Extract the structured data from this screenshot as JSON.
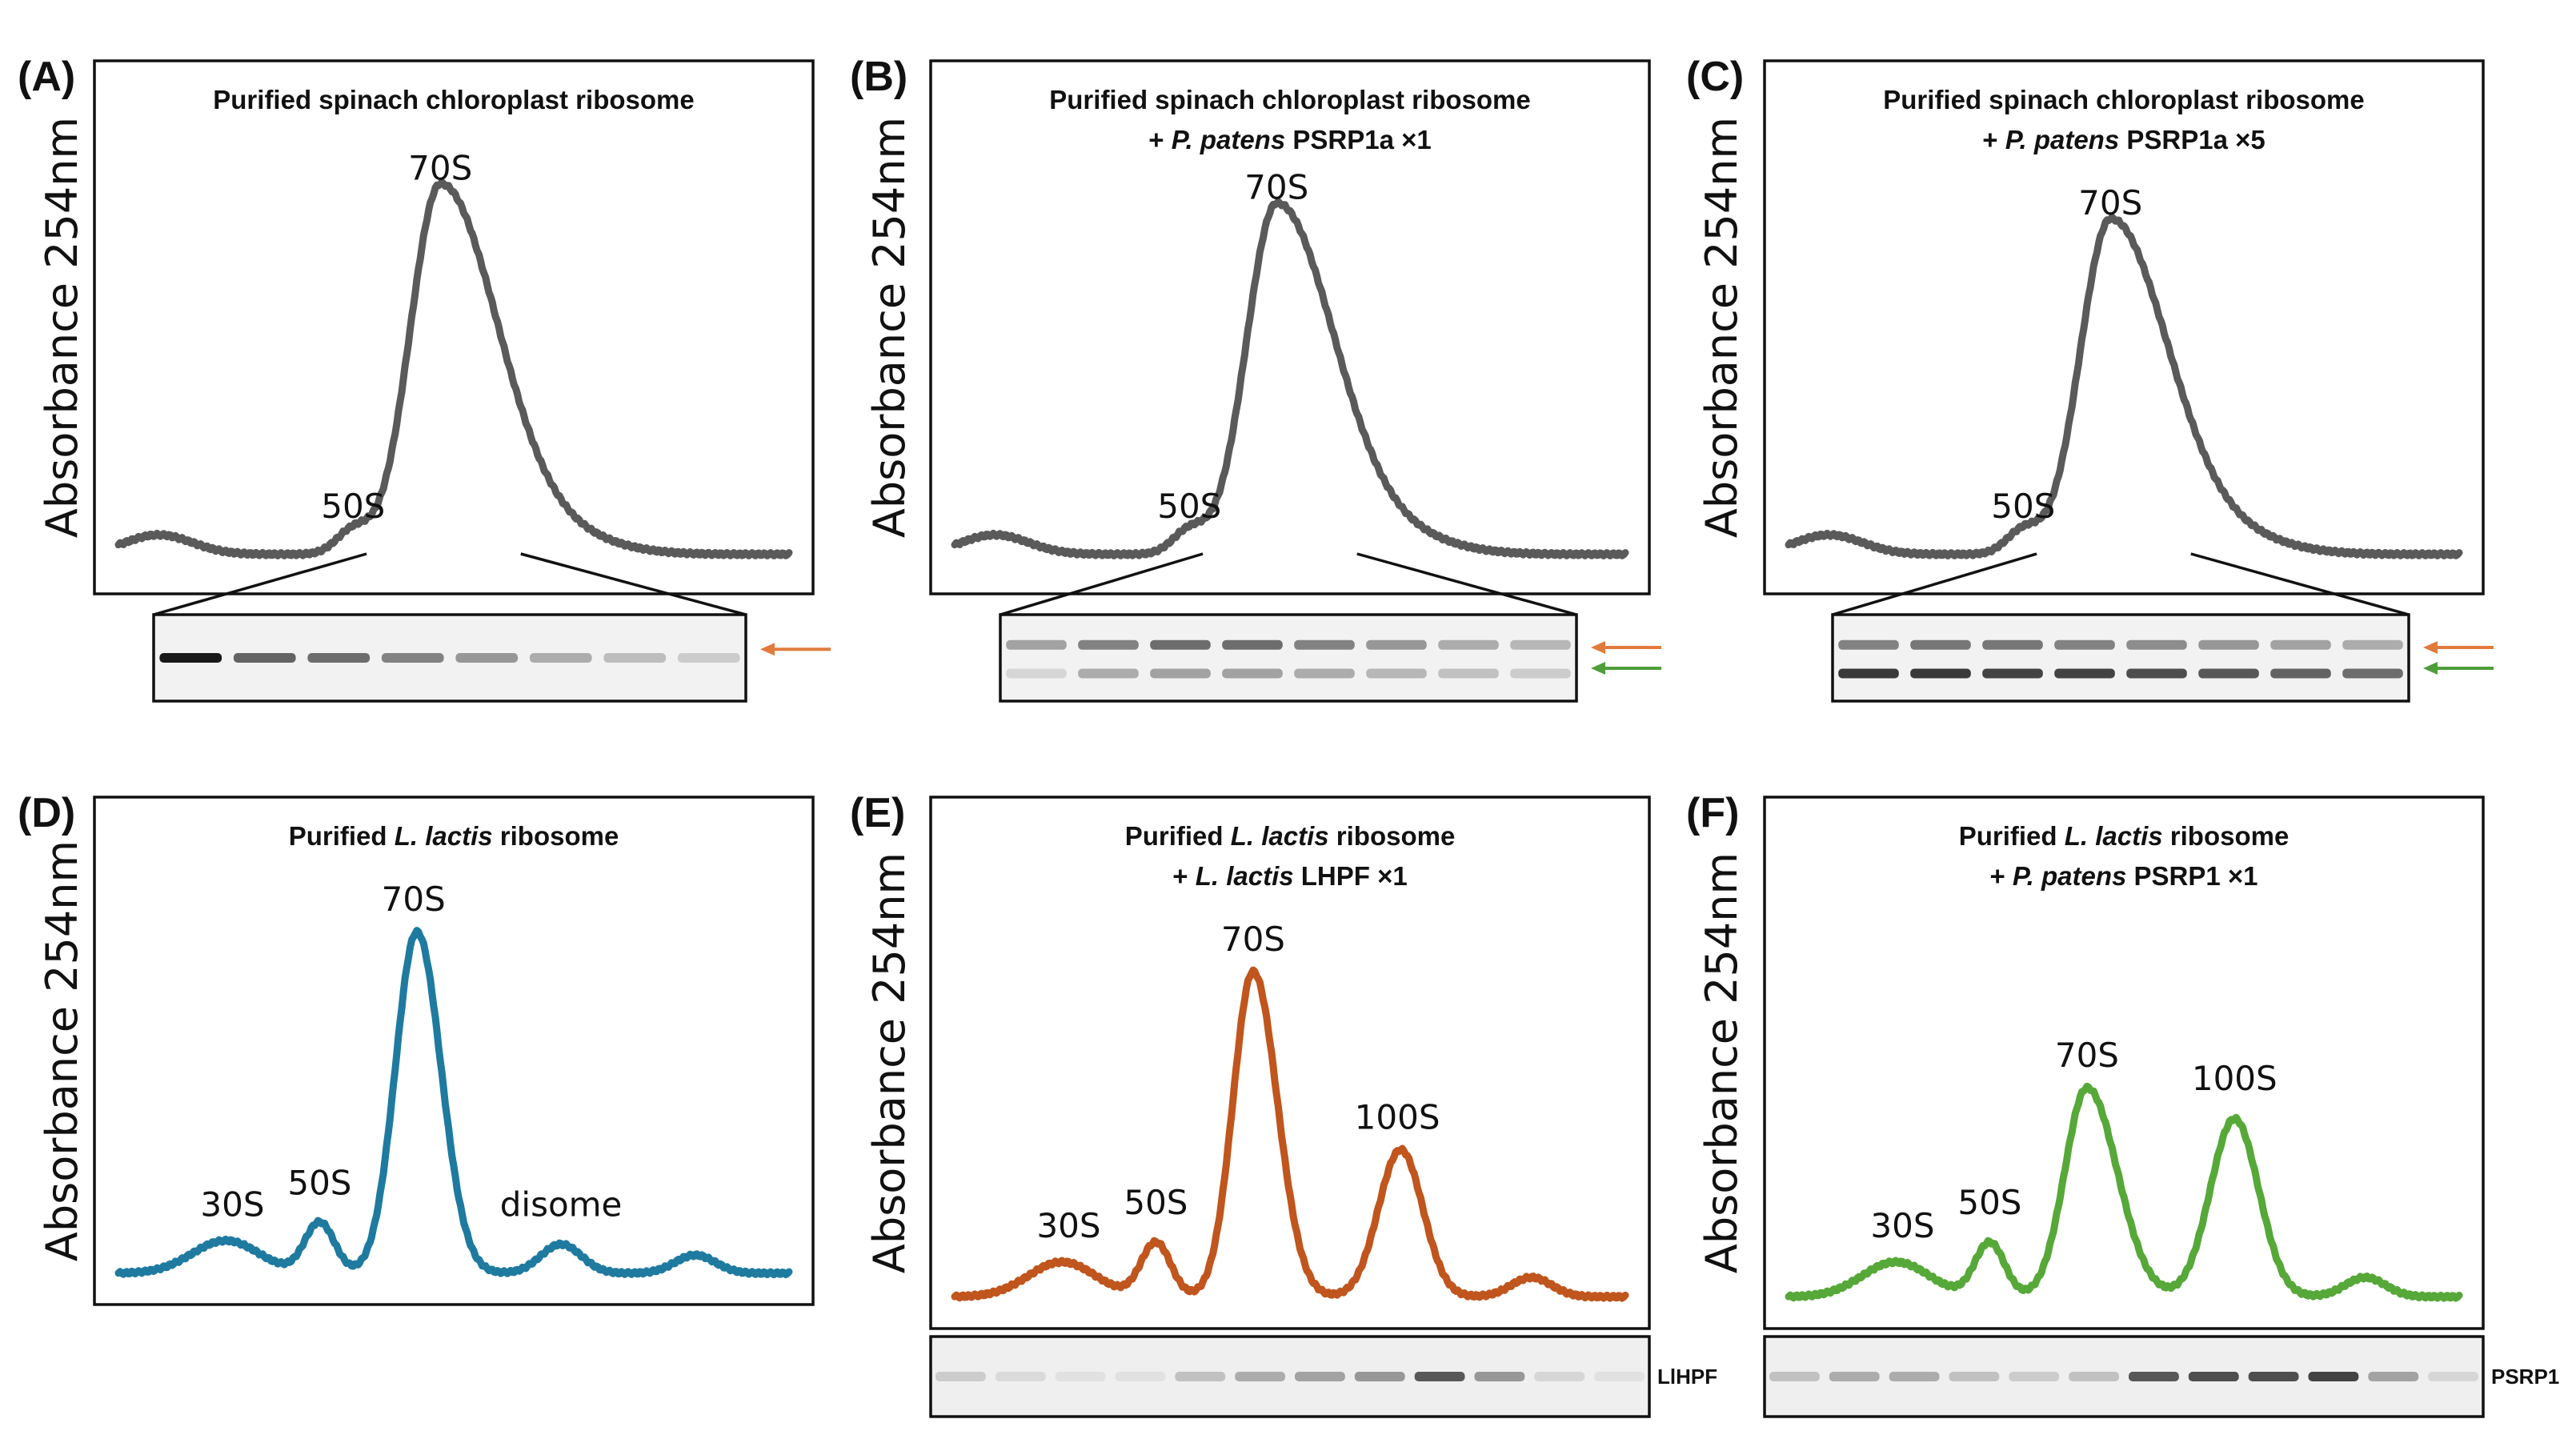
{
  "chart_data": [
    {
      "type": "line",
      "panel": "(A)",
      "title_lines": [
        [
          {
            "text": "Purified spinach chloroplast ribosome",
            "italic": false
          }
        ]
      ],
      "ylabel": "Absorbance 254nm",
      "xlabel": "",
      "color": "#5a5a5a",
      "peaks": [
        {
          "label": "50S",
          "x": 0.35,
          "y": 0.08
        },
        {
          "label": "70S",
          "x": 0.48,
          "y": 0.95
        }
      ],
      "curve": {
        "baseline_start": 0.04,
        "baseline_end": 0.04,
        "components": [
          {
            "c": 0.06,
            "a": 0.05,
            "w": 0.05
          },
          {
            "c": 0.35,
            "a": 0.06,
            "w": 0.025
          },
          {
            "c": 0.48,
            "a": 0.95,
            "w": 0.045,
            "wr": 0.085
          },
          {
            "c": 0.66,
            "a": 0.04,
            "w": 0.08
          }
        ]
      },
      "blot": {
        "lanes": 8,
        "zoom_from": 0.37,
        "zoom_to": 0.6,
        "arrows": [
          "#e07b3c"
        ],
        "bands": [
          {
            "row": 0.5,
            "intensity": [
              1.0,
              0.65,
              0.6,
              0.5,
              0.4,
              0.3,
              0.22,
              0.15
            ]
          }
        ]
      }
    },
    {
      "type": "line",
      "panel": "(B)",
      "title_lines": [
        [
          {
            "text": "Purified spinach chloroplast ribosome",
            "italic": false
          }
        ],
        [
          {
            "text": "+ ",
            "italic": false
          },
          {
            "text": "P. patens",
            "italic": true
          },
          {
            "text": " PSRP1a ×1",
            "italic": false
          }
        ]
      ],
      "ylabel": "Absorbance 254nm",
      "xlabel": "",
      "color": "#5a5a5a",
      "peaks": [
        {
          "label": "50S",
          "x": 0.35,
          "y": 0.08
        },
        {
          "label": "70S",
          "x": 0.48,
          "y": 0.9
        }
      ],
      "curve": {
        "baseline_start": 0.04,
        "baseline_end": 0.04,
        "components": [
          {
            "c": 0.06,
            "a": 0.05,
            "w": 0.05
          },
          {
            "c": 0.35,
            "a": 0.06,
            "w": 0.025
          },
          {
            "c": 0.48,
            "a": 0.9,
            "w": 0.045,
            "wr": 0.085
          },
          {
            "c": 0.66,
            "a": 0.04,
            "w": 0.08
          }
        ]
      },
      "blot": {
        "lanes": 8,
        "zoom_from": 0.37,
        "zoom_to": 0.6,
        "arrows": [
          "#e07b3c",
          "#4e9e3a"
        ],
        "bands": [
          {
            "row": 0.35,
            "intensity": [
              0.35,
              0.5,
              0.6,
              0.6,
              0.5,
              0.4,
              0.3,
              0.25
            ]
          },
          {
            "row": 0.68,
            "intensity": [
              0.1,
              0.3,
              0.35,
              0.35,
              0.3,
              0.25,
              0.2,
              0.15
            ]
          }
        ]
      }
    },
    {
      "type": "line",
      "panel": "(C)",
      "title_lines": [
        [
          {
            "text": "Purified spinach chloroplast ribosome",
            "italic": false
          }
        ],
        [
          {
            "text": "+ ",
            "italic": false
          },
          {
            "text": "P. patens",
            "italic": true
          },
          {
            "text": " PSRP1a ×5",
            "italic": false
          }
        ]
      ],
      "ylabel": "Absorbance 254nm",
      "xlabel": "",
      "color": "#5a5a5a",
      "peaks": [
        {
          "label": "50S",
          "x": 0.35,
          "y": 0.08
        },
        {
          "label": "70S",
          "x": 0.48,
          "y": 0.86
        }
      ],
      "curve": {
        "baseline_start": 0.04,
        "baseline_end": 0.04,
        "components": [
          {
            "c": 0.06,
            "a": 0.05,
            "w": 0.05
          },
          {
            "c": 0.35,
            "a": 0.06,
            "w": 0.025
          },
          {
            "c": 0.48,
            "a": 0.86,
            "w": 0.045,
            "wr": 0.085
          },
          {
            "c": 0.66,
            "a": 0.04,
            "w": 0.08
          }
        ]
      },
      "blot": {
        "lanes": 8,
        "zoom_from": 0.37,
        "zoom_to": 0.6,
        "arrows": [
          "#e07b3c",
          "#4e9e3a"
        ],
        "bands": [
          {
            "row": 0.35,
            "intensity": [
              0.5,
              0.55,
              0.55,
              0.5,
              0.45,
              0.4,
              0.35,
              0.3
            ]
          },
          {
            "row": 0.68,
            "intensity": [
              0.85,
              0.85,
              0.8,
              0.8,
              0.75,
              0.7,
              0.65,
              0.6
            ]
          }
        ]
      }
    },
    {
      "type": "line",
      "panel": "(D)",
      "title_lines": [
        [
          {
            "text": "Purified ",
            "italic": false
          },
          {
            "text": "L. lactis",
            "italic": true
          },
          {
            "text": " ribosome",
            "italic": false
          }
        ]
      ],
      "ylabel": "Absorbance 254nm",
      "xlabel": "",
      "color": "#1f7aa0",
      "peaks": [
        {
          "label": "30S",
          "x": 0.17,
          "y": 0.12
        },
        {
          "label": "50S",
          "x": 0.3,
          "y": 0.18
        },
        {
          "label": "70S",
          "x": 0.44,
          "y": 0.96
        },
        {
          "label": "disome",
          "x": 0.66,
          "y": 0.12
        }
      ],
      "curve": {
        "baseline_start": 0.02,
        "baseline_end": 0.02,
        "components": [
          {
            "c": 0.16,
            "a": 0.09,
            "w": 0.05
          },
          {
            "c": 0.3,
            "a": 0.14,
            "w": 0.022
          },
          {
            "c": 0.445,
            "a": 0.94,
            "w": 0.032,
            "wr": 0.036
          },
          {
            "c": 0.66,
            "a": 0.08,
            "w": 0.03
          },
          {
            "c": 0.86,
            "a": 0.05,
            "w": 0.03
          }
        ]
      }
    },
    {
      "type": "line",
      "panel": "(E)",
      "title_lines": [
        [
          {
            "text": "Purified ",
            "italic": false
          },
          {
            "text": "L. lactis",
            "italic": true
          },
          {
            "text": " ribosome",
            "italic": false
          }
        ],
        [
          {
            "text": "+ ",
            "italic": false
          },
          {
            "text": "L. lactis",
            "italic": true
          },
          {
            "text": " LHPF ×1",
            "italic": false
          }
        ]
      ],
      "ylabel": "Absorbance 254nm",
      "xlabel": "",
      "color": "#c0551d",
      "peaks": [
        {
          "label": "30S",
          "x": 0.17,
          "y": 0.12
        },
        {
          "label": "50S",
          "x": 0.3,
          "y": 0.18
        },
        {
          "label": "70S",
          "x": 0.445,
          "y": 0.86
        },
        {
          "label": "100S",
          "x": 0.66,
          "y": 0.4
        }
      ],
      "curve": {
        "baseline_start": 0.02,
        "baseline_end": 0.02,
        "components": [
          {
            "c": 0.16,
            "a": 0.09,
            "w": 0.05
          },
          {
            "c": 0.3,
            "a": 0.14,
            "w": 0.022
          },
          {
            "c": 0.445,
            "a": 0.84,
            "w": 0.03,
            "wr": 0.036
          },
          {
            "c": 0.665,
            "a": 0.38,
            "w": 0.033
          },
          {
            "c": 0.86,
            "a": 0.05,
            "w": 0.03
          }
        ]
      },
      "blot": {
        "lanes": 12,
        "label": "LlHPF",
        "arrows": [],
        "bands": [
          {
            "row": 0.5,
            "intensity": [
              0.15,
              0.08,
              0.05,
              0.05,
              0.2,
              0.3,
              0.35,
              0.4,
              0.7,
              0.4,
              0.1,
              0.05
            ]
          }
        ]
      }
    },
    {
      "type": "line",
      "panel": "(F)",
      "title_lines": [
        [
          {
            "text": "Purified ",
            "italic": false
          },
          {
            "text": "L. lactis",
            "italic": true
          },
          {
            "text": " ribosome",
            "italic": false
          }
        ],
        [
          {
            "text": "+ ",
            "italic": false
          },
          {
            "text": "P. patens",
            "italic": true
          },
          {
            "text": " PSRP1 ×1",
            "italic": false
          }
        ]
      ],
      "ylabel": "Absorbance 254nm",
      "xlabel": "",
      "color": "#56a838",
      "peaks": [
        {
          "label": "30S",
          "x": 0.17,
          "y": 0.12
        },
        {
          "label": "50S",
          "x": 0.3,
          "y": 0.18
        },
        {
          "label": "70S",
          "x": 0.445,
          "y": 0.56
        },
        {
          "label": "100S",
          "x": 0.665,
          "y": 0.5
        }
      ],
      "curve": {
        "baseline_start": 0.02,
        "baseline_end": 0.02,
        "components": [
          {
            "c": 0.16,
            "a": 0.09,
            "w": 0.05
          },
          {
            "c": 0.3,
            "a": 0.14,
            "w": 0.022
          },
          {
            "c": 0.445,
            "a": 0.54,
            "w": 0.033,
            "wr": 0.045
          },
          {
            "c": 0.665,
            "a": 0.46,
            "w": 0.036
          },
          {
            "c": 0.86,
            "a": 0.05,
            "w": 0.03
          }
        ]
      },
      "blot": {
        "lanes": 12,
        "label": "PSRP1",
        "arrows": [],
        "bands": [
          {
            "row": 0.5,
            "intensity": [
              0.2,
              0.3,
              0.3,
              0.2,
              0.15,
              0.2,
              0.7,
              0.75,
              0.75,
              0.8,
              0.35,
              0.1
            ]
          }
        ]
      }
    }
  ]
}
